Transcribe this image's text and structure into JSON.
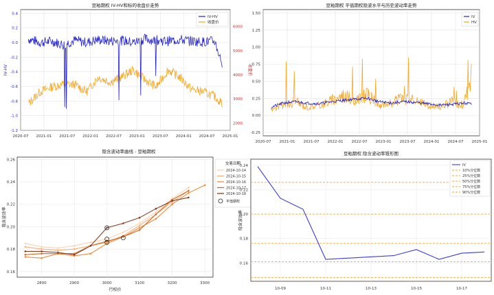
{
  "chart_data": [
    {
      "type": "line",
      "title": "豆粕期权 IV-HV和标的收盘价走势",
      "xlabel": "",
      "ylabel": "IV-HV",
      "y2label": "收盘价",
      "xlim": [
        "2020-07",
        "2025-01"
      ],
      "x_ticks": [
        "2020-07",
        "2021-01",
        "2021-07",
        "2022-01",
        "2022-07",
        "2023-01",
        "2023-07",
        "2024-01",
        "2024-07",
        "2025-01"
      ],
      "ylim": [
        -1.2,
        0.45
      ],
      "y_ticks": [
        "-1.2",
        "-1.0",
        "-0.8",
        "-0.6",
        "-0.4",
        "-0.2",
        "0.0",
        "0.2",
        "0.4"
      ],
      "y2lim": [
        1700,
        6700
      ],
      "y2_ticks": [
        "2000",
        "3000",
        "4000",
        "5000",
        "6000"
      ],
      "legend": "top-right",
      "grid": true,
      "series": [
        {
          "name": "IV-HV",
          "color": "#1f1fd6",
          "axis": "left",
          "x": [
            "2020-09",
            "2020-12",
            "2021-03",
            "2021-06",
            "2021-09",
            "2021-12",
            "2022-03",
            "2022-06",
            "2022-09",
            "2022-12",
            "2023-03",
            "2023-06",
            "2023-09",
            "2023-12",
            "2024-03",
            "2024-06",
            "2024-09",
            "2024-11"
          ],
          "values": [
            0.05,
            0.0,
            0.02,
            -0.03,
            0.03,
            0.0,
            0.04,
            0.02,
            0.03,
            0.0,
            0.05,
            0.03,
            0.02,
            0.04,
            0.02,
            0.01,
            0.02,
            -0.3
          ]
        },
        {
          "name": "收盘价",
          "color": "#f5a623",
          "axis": "right",
          "x": [
            "2020-09",
            "2020-12",
            "2021-03",
            "2021-06",
            "2021-09",
            "2021-12",
            "2022-03",
            "2022-06",
            "2022-09",
            "2022-12",
            "2023-03",
            "2023-06",
            "2023-09",
            "2023-12",
            "2024-03",
            "2024-06",
            "2024-09",
            "2024-11"
          ],
          "values": [
            2800,
            3300,
            3500,
            3600,
            3600,
            3300,
            3900,
            3700,
            3900,
            4200,
            3800,
            3500,
            4200,
            3900,
            3400,
            3300,
            3100,
            2800
          ]
        }
      ]
    },
    {
      "type": "line",
      "title": "豆粕期权 平值期权隐波水平与历史波动率走势",
      "xlabel": "",
      "ylabel": "",
      "xlim": [
        "2020-07",
        "2025-01"
      ],
      "x_ticks": [
        "2020-07",
        "2021-01",
        "2021-07",
        "2022-01",
        "2022-07",
        "2023-01",
        "2023-07",
        "2024-01",
        "2024-07",
        "2025-01"
      ],
      "ylim": [
        -0.3,
        1.55
      ],
      "y_ticks": [
        "-0.25",
        "0.00",
        "0.25",
        "0.50",
        "0.75",
        "1.00",
        "1.25",
        "1.50"
      ],
      "legend": "top-right",
      "grid": true,
      "series": [
        {
          "name": "IV",
          "color": "#1f1fd6",
          "x": [
            "2020-09",
            "2020-12",
            "2021-03",
            "2021-06",
            "2021-09",
            "2021-12",
            "2022-03",
            "2022-06",
            "2022-09",
            "2022-12",
            "2023-03",
            "2023-06",
            "2023-09",
            "2023-12",
            "2024-03",
            "2024-06",
            "2024-09",
            "2024-11"
          ],
          "values": [
            0.12,
            0.18,
            0.2,
            0.18,
            0.17,
            0.2,
            0.22,
            0.24,
            0.25,
            0.2,
            0.18,
            0.2,
            0.19,
            0.17,
            0.15,
            0.16,
            0.18,
            0.17
          ]
        },
        {
          "name": "HV",
          "color": "#f5a623",
          "x": [
            "2020-09",
            "2020-12",
            "2021-03",
            "2021-06",
            "2021-09",
            "2021-12",
            "2022-03",
            "2022-06",
            "2022-09",
            "2022-12",
            "2023-03",
            "2023-06",
            "2023-09",
            "2023-12",
            "2024-03",
            "2024-06",
            "2024-09",
            "2024-11"
          ],
          "values": [
            0.08,
            0.15,
            0.2,
            0.12,
            0.15,
            0.22,
            0.3,
            0.2,
            0.3,
            0.15,
            0.18,
            0.25,
            0.2,
            0.15,
            0.12,
            0.2,
            0.15,
            0.58
          ]
        }
      ]
    },
    {
      "type": "line",
      "title": "隐含波动率曲线 - 豆粕期权",
      "xlabel": "行权价",
      "ylabel": "隐含波动率",
      "xlim": [
        2725,
        3325
      ],
      "x_ticks": [
        "2800",
        "2900",
        "3000",
        "3100",
        "3200",
        "3300"
      ],
      "ylim": [
        0.155,
        0.262
      ],
      "y_ticks": [
        "0.16",
        "0.18",
        "0.20",
        "0.22",
        "0.24",
        "0.26"
      ],
      "legend": "top-right",
      "legend_title": "交易日期",
      "grid": true,
      "series": [
        {
          "name": "2024-10-14",
          "color": "#fbd3b2",
          "x": [
            2750,
            2800,
            2850,
            2900,
            2950,
            3000,
            3050,
            3100,
            3150,
            3200,
            3250
          ],
          "values": [
            0.185,
            0.182,
            0.181,
            0.183,
            0.186,
            0.189,
            0.195,
            0.203,
            0.213,
            0.225,
            0.235
          ]
        },
        {
          "name": "2024-10-15",
          "color": "#f7b07c",
          "x": [
            2750,
            2800,
            2850,
            2900,
            2950,
            3000,
            3050,
            3100,
            3150,
            3200,
            3250
          ],
          "values": [
            0.182,
            0.18,
            0.179,
            0.18,
            0.183,
            0.186,
            0.192,
            0.201,
            0.211,
            0.222,
            0.232
          ]
        },
        {
          "name": "2024-10-16",
          "color": "#f08a3c",
          "x": [
            2750,
            2800,
            2850,
            2900,
            2950,
            3000,
            3050,
            3100,
            3150,
            3200,
            3250,
            3300
          ],
          "values": [
            0.173,
            0.172,
            0.176,
            0.174,
            0.176,
            0.185,
            0.191,
            0.199,
            0.207,
            0.22,
            0.23,
            0.237
          ]
        },
        {
          "name": "2024-10-17",
          "color": "#d2691e",
          "x": [
            2750,
            2800,
            2850,
            2900,
            2950,
            3000,
            3050,
            3100,
            3150,
            3200,
            3250
          ],
          "values": [
            0.175,
            0.176,
            0.176,
            0.176,
            0.183,
            0.187,
            0.191,
            0.197,
            0.211,
            0.224,
            0.232
          ]
        },
        {
          "name": "2024-10-18",
          "color": "#8b3a1e",
          "x": [
            2750,
            2800,
            2850,
            2900,
            2950,
            3000,
            3050,
            3100,
            3150,
            3200,
            3250
          ],
          "values": [
            0.178,
            0.178,
            0.177,
            0.175,
            0.183,
            0.199,
            0.203,
            0.208,
            0.216,
            0.223,
            0.226
          ]
        }
      ],
      "markers_name": "平值期权",
      "markers": [
        {
          "x": 3000,
          "y": 0.199
        },
        {
          "x": 3000,
          "y": 0.189
        },
        {
          "x": 3000,
          "y": 0.186
        },
        {
          "x": 3050,
          "y": 0.19
        }
      ]
    },
    {
      "type": "line",
      "title": "豆粕期权 隐含波动率锥形图",
      "xlabel": "",
      "ylabel": "隐含波动率",
      "x_ticks": [
        "10-09",
        "10-11",
        "10-13",
        "10-15",
        "10-17"
      ],
      "ylim": [
        0.145,
        0.245
      ],
      "y_ticks": [
        "0.16",
        "0.18",
        "0.20",
        "0.22",
        "0.24"
      ],
      "legend": "top-right",
      "grid": true,
      "series": [
        {
          "name": "IV",
          "color": "#3a3ae6",
          "x": [
            "10-08",
            "10-09",
            "10-10",
            "10-11",
            "10-14",
            "10-15",
            "10-16",
            "10-17",
            "10-18"
          ],
          "values": [
            0.239,
            0.213,
            0.204,
            0.163,
            0.166,
            0.171,
            0.163,
            0.168,
            0.169
          ]
        }
      ],
      "reference_lines": [
        {
          "name": "10%分位数",
          "value": 0.148,
          "color": "#f5a623"
        },
        {
          "name": "25%分位数",
          "value": 0.161,
          "color": "#f5a623"
        },
        {
          "name": "50%分位数",
          "value": 0.176,
          "color": "#f5a623"
        },
        {
          "name": "75%分位数",
          "value": 0.2,
          "color": "#f5a623"
        },
        {
          "name": "90%分位数",
          "value": 0.226,
          "color": "#f5a623"
        }
      ]
    }
  ]
}
